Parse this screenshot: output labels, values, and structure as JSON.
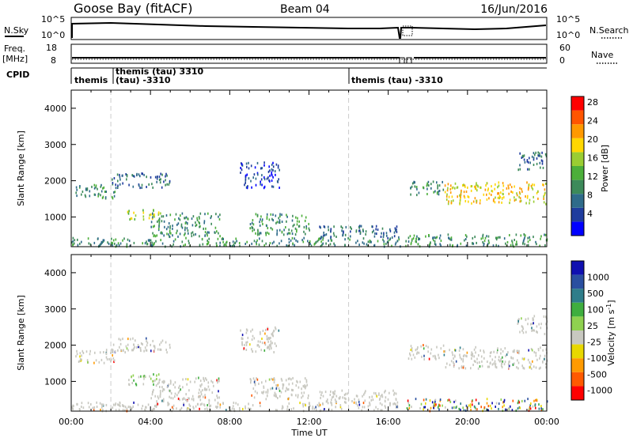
{
  "header": {
    "station": "Goose Bay (fitACF)",
    "beam": "Beam 04",
    "date": "16/Jun/2016"
  },
  "strip_labels": {
    "nsky": "N.Sky",
    "nsearch": "N.Search",
    "nsky_tick_top": "10^5",
    "nsky_tick_bottom": "10^0",
    "freq": "Freq.",
    "freq_unit": "[MHz]",
    "freq_tick_top": "18",
    "freq_tick_bottom": "8",
    "nave": "Nave",
    "nave_tick_top": "60",
    "nave_tick_bottom": "0",
    "cpid": "CPID"
  },
  "cpid_labels": {
    "a": "themis",
    "b": "themis (tau) 3310",
    "c": "(tau) -3310",
    "d": "themis (tau) -3310"
  },
  "colors": {
    "power": [
      "#0000ff",
      "#1f3c9e",
      "#2f6b8a",
      "#3d8a5a",
      "#4caf3a",
      "#9acd32",
      "#ffd700",
      "#ff9900",
      "#ff5500",
      "#ff0000"
    ],
    "velocity": [
      "#1010b0",
      "#2a4fa0",
      "#2e7d8a",
      "#3fae3f",
      "#8fd150",
      "#c8c8c0",
      "#e8d800",
      "#ff9a00",
      "#ff5a00",
      "#ff0000"
    ],
    "ground": "#c8c8c0"
  },
  "chart_data": [
    {
      "type": "heatmap",
      "name": "power",
      "ylabel": "Slant Range [km]",
      "ylim": [
        180,
        4500
      ],
      "yticks": [
        "1000",
        "2000",
        "3000",
        "4000"
      ],
      "xlim": [
        0,
        24
      ],
      "colorbar_label": "Power [dB]",
      "colorbar_ticks": [
        "4",
        "8",
        "12",
        "16",
        "20",
        "24",
        "28"
      ],
      "regions": [
        {
          "t0": 0.0,
          "t1": 16.6,
          "r0": 180,
          "r1": 420,
          "val": 3
        },
        {
          "t0": 0.2,
          "t1": 2.2,
          "r0": 1500,
          "r1": 1900,
          "val": 3
        },
        {
          "t0": 2.0,
          "t1": 5.0,
          "r0": 1800,
          "r1": 2200,
          "val": 2
        },
        {
          "t0": 2.8,
          "t1": 4.5,
          "r0": 900,
          "r1": 1200,
          "val": 5
        },
        {
          "t0": 4.0,
          "t1": 7.5,
          "r0": 450,
          "r1": 1100,
          "val": 3
        },
        {
          "t0": 9.0,
          "t1": 12.0,
          "r0": 500,
          "r1": 1100,
          "val": 3
        },
        {
          "t0": 8.5,
          "t1": 10.5,
          "r0": 1800,
          "r1": 2500,
          "val": 1
        },
        {
          "t0": 12.5,
          "t1": 16.5,
          "r0": 380,
          "r1": 750,
          "val": 2
        },
        {
          "t0": 17.0,
          "t1": 18.8,
          "r0": 1600,
          "r1": 2000,
          "val": 3
        },
        {
          "t0": 18.8,
          "t1": 24.0,
          "r0": 1350,
          "r1": 1950,
          "val": 6
        },
        {
          "t0": 22.5,
          "t1": 24.0,
          "r0": 2300,
          "r1": 2800,
          "val": 2
        },
        {
          "t0": 16.8,
          "t1": 24.0,
          "r0": 180,
          "r1": 520,
          "val": 3
        }
      ]
    },
    {
      "type": "heatmap",
      "name": "velocity",
      "xlabel": "Time UT",
      "ylabel": "Slant Range [km]",
      "ylim": [
        180,
        4500
      ],
      "yticks": [
        "1000",
        "2000",
        "3000",
        "4000"
      ],
      "xlim": [
        0,
        24
      ],
      "xticks": [
        "00:00",
        "04:00",
        "08:00",
        "12:00",
        "16:00",
        "20:00",
        "00:00"
      ],
      "colorbar_label": "Velocity [m s^-1]",
      "colorbar_ticks": [
        "1000",
        "500",
        "100",
        "25",
        "-25",
        "-100",
        "-500",
        "-1000"
      ],
      "regions": [
        {
          "t0": 0.0,
          "t1": 16.6,
          "r0": 180,
          "r1": 420,
          "val": 5
        },
        {
          "t0": 0.2,
          "t1": 2.2,
          "r0": 1500,
          "r1": 1900,
          "val": 5
        },
        {
          "t0": 2.0,
          "t1": 5.0,
          "r0": 1800,
          "r1": 2200,
          "val": 5
        },
        {
          "t0": 2.8,
          "t1": 4.5,
          "r0": 900,
          "r1": 1200,
          "val": 4
        },
        {
          "t0": 4.0,
          "t1": 7.5,
          "r0": 450,
          "r1": 1100,
          "val": 5
        },
        {
          "t0": 9.0,
          "t1": 12.0,
          "r0": 500,
          "r1": 1100,
          "val": 5
        },
        {
          "t0": 8.5,
          "t1": 10.5,
          "r0": 1800,
          "r1": 2500,
          "val": 5
        },
        {
          "t0": 12.5,
          "t1": 16.5,
          "r0": 380,
          "r1": 750,
          "val": 5
        },
        {
          "t0": 17.0,
          "t1": 18.8,
          "r0": 1600,
          "r1": 2000,
          "val": 5
        },
        {
          "t0": 18.8,
          "t1": 24.0,
          "r0": 1350,
          "r1": 1950,
          "val": 5
        },
        {
          "t0": 22.5,
          "t1": 24.0,
          "r0": 2300,
          "r1": 2800,
          "val": 5
        },
        {
          "t0": 16.8,
          "t1": 24.0,
          "r0": 180,
          "r1": 520,
          "val": 3
        }
      ]
    }
  ]
}
